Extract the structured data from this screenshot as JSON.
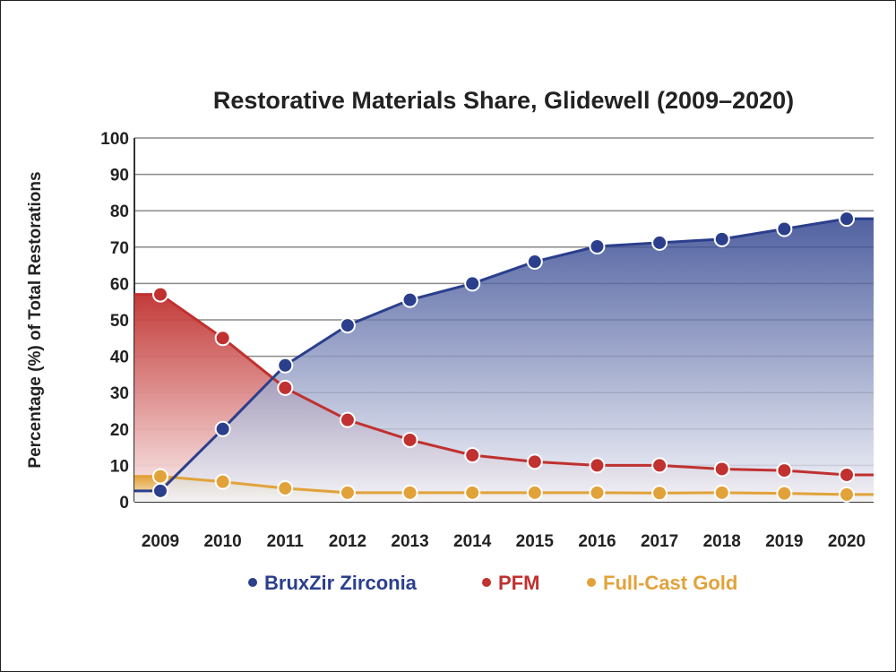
{
  "chart_data": {
    "type": "area",
    "title": "Restorative Materials Share, Glidewell (2009–2020)",
    "xlabel": "",
    "ylabel": "Percentage (%) of Total Restorations",
    "ylim": [
      0,
      100
    ],
    "yticks": [
      0,
      10,
      20,
      30,
      40,
      50,
      60,
      70,
      80,
      90,
      100
    ],
    "grid": true,
    "legend_position": "bottom",
    "categories": [
      "2009",
      "2010",
      "2011",
      "2012",
      "2013",
      "2014",
      "2015",
      "2016",
      "2017",
      "2018",
      "2019",
      "2020"
    ],
    "series": [
      {
        "name": "BruxZir Zirconia",
        "color": "#2b3f8c",
        "values": [
          3,
          20,
          37.5,
          48.5,
          55.5,
          60,
          66,
          70.2,
          71.2,
          72.2,
          75,
          77.8
        ]
      },
      {
        "name": "PFM",
        "color": "#c0312f",
        "values": [
          57,
          45,
          31.3,
          22.5,
          17,
          12.8,
          11,
          10,
          10,
          9,
          8.6,
          7.4
        ]
      },
      {
        "name": "Full-Cast Gold",
        "color": "#e2a23a",
        "values": [
          7,
          5.5,
          3.7,
          2.5,
          2.5,
          2.5,
          2.5,
          2.5,
          2.4,
          2.5,
          2.3,
          2
        ]
      }
    ]
  }
}
